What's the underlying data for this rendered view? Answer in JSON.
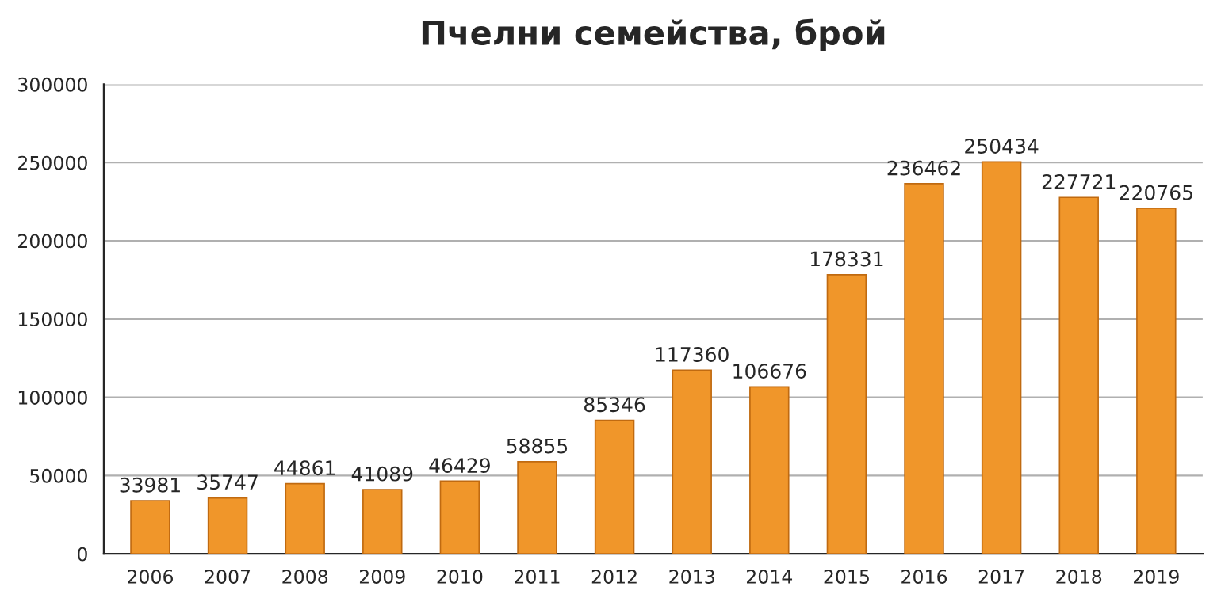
{
  "chart_data": {
    "type": "bar",
    "title": "Пчелни семейства, брой",
    "categories": [
      "2006",
      "2007",
      "2008",
      "2009",
      "2010",
      "2011",
      "2012",
      "2013",
      "2014",
      "2015",
      "2016",
      "2017",
      "2018",
      "2019"
    ],
    "values": [
      33981,
      35747,
      44861,
      41089,
      46429,
      58855,
      85346,
      117360,
      106676,
      178331,
      236462,
      250434,
      227721,
      220765
    ],
    "color": "#f0962a",
    "ylim": [
      0,
      300000
    ],
    "yticks": [
      0,
      50000,
      100000,
      150000,
      200000,
      250000,
      300000
    ],
    "grid": "y",
    "data_labels": true,
    "legend": false
  }
}
